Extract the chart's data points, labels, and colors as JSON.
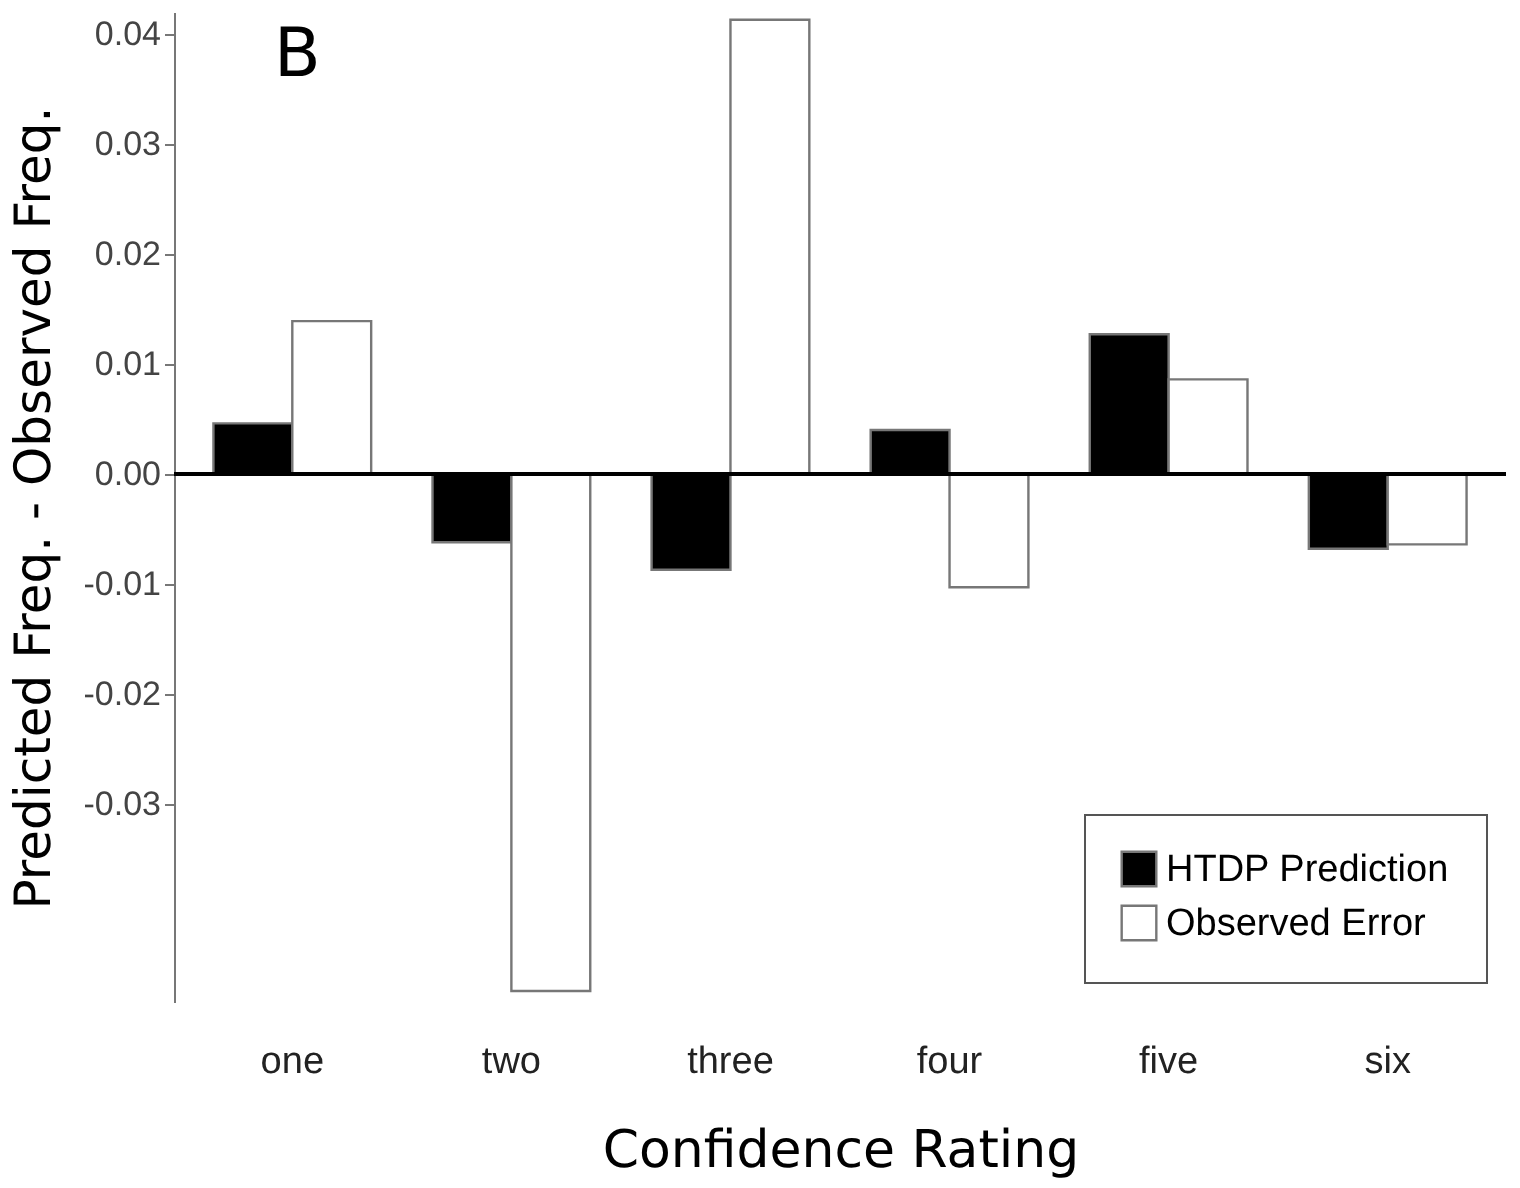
{
  "chart_data": {
    "type": "bar",
    "xlabel": "Confidence Rating",
    "ylabel": "Predicted Freq. - Observed Freq.",
    "annotations": [
      "B"
    ],
    "categories": [
      "one",
      "two",
      "three",
      "four",
      "five",
      "six"
    ],
    "series": [
      {
        "name": "HTDP Prediction",
        "color": "#000000",
        "values": [
          0.0046,
          -0.0062,
          -0.0087,
          0.004,
          0.0127,
          -0.0068
        ]
      },
      {
        "name": "Observed Error",
        "color": "#ffffff",
        "values": [
          0.0139,
          -0.047,
          0.0413,
          -0.0103,
          0.0086,
          -0.0064
        ]
      }
    ],
    "ylim": [
      -0.048,
      0.042
    ],
    "yticks": [
      {
        "value": -0.03,
        "label": "-0.03"
      },
      {
        "value": -0.02,
        "label": "-0.02"
      },
      {
        "value": -0.01,
        "label": "-0.01"
      },
      {
        "value": 0,
        "label": "0.00"
      },
      {
        "value": 0.01,
        "label": "0.01"
      },
      {
        "value": 0.02,
        "label": "0.02"
      },
      {
        "value": 0.03,
        "label": "0.03"
      },
      {
        "value": 0.04,
        "label": "0.04"
      }
    ],
    "ref_lines": [
      {
        "axis": "y",
        "value": 0,
        "color": "#000000"
      }
    ],
    "grid": false,
    "legend": "bottom right"
  }
}
